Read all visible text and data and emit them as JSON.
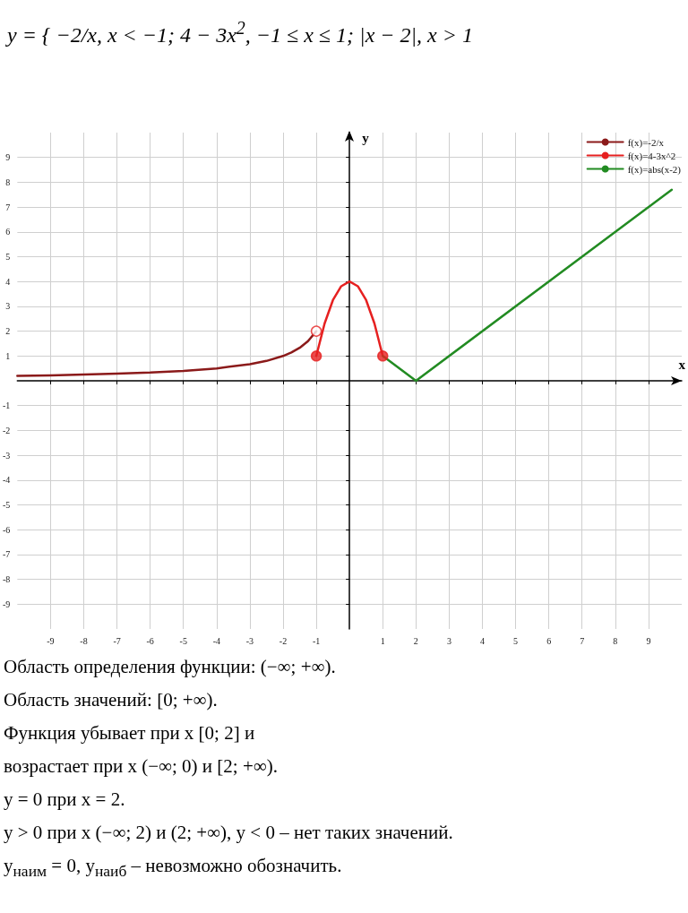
{
  "chart_data": {
    "type": "line",
    "title": "y = { −2/x,  x < −1;   4 − 3x$^{2}$,  −1 ≤ x ≤ 1;   |x − 2|,  x > 1",
    "xlabel": "x",
    "ylabel": "y",
    "xlim": [
      -10,
      10
    ],
    "ylim": [
      -10,
      10
    ],
    "xticks": [
      -9,
      -8,
      -7,
      -6,
      -5,
      -4,
      -3,
      -2,
      -1,
      1,
      2,
      3,
      4,
      5,
      6,
      7,
      8,
      9
    ],
    "yticks": [
      -9,
      -8,
      -7,
      -6,
      -5,
      -4,
      -3,
      -2,
      -1,
      1,
      2,
      3,
      4,
      5,
      6,
      7,
      8,
      9
    ],
    "grid": true,
    "legend": "top right",
    "marker": "none",
    "line_style": "solid",
    "series": [
      {
        "name": "f(x)=-2/x",
        "color": "#8b1a1a",
        "x": [
          -10,
          -9,
          -8,
          -7,
          -6,
          -5,
          -4,
          -3,
          -2.5,
          -2,
          -1.75,
          -1.5,
          -1.25,
          -1
        ],
        "values": [
          0.2,
          0.22,
          0.25,
          0.29,
          0.33,
          0.4,
          0.5,
          0.67,
          0.8,
          1,
          1.14,
          1.33,
          1.6,
          2
        ]
      },
      {
        "name": "f(x)=4-3x^2",
        "color": "#e62020",
        "x": [
          -1,
          -0.75,
          -0.5,
          -0.25,
          0,
          0.25,
          0.5,
          0.75,
          1
        ],
        "values": [
          1,
          2.31,
          3.25,
          3.81,
          4,
          3.81,
          3.25,
          2.31,
          1
        ]
      },
      {
        "name": "f(x)=abs(x-2)",
        "color": "#228b22",
        "x": [
          1,
          2,
          9.7
        ],
        "values": [
          1,
          0,
          7.7
        ]
      },
      {
        "type": "scatter",
        "marker": "circle",
        "color": "#e62020",
        "x": [
          -1,
          1
        ],
        "values": [
          1,
          1
        ]
      },
      {
        "type": "scatter",
        "marker": "circle",
        "color": "#ffffff",
        "x": [
          -1
        ],
        "values": [
          2
        ]
      }
    ],
    "annotations": [
      "Область определения функции: (−∞; +∞).",
      "Область значений: [0; +∞).",
      "Функция убывает при x [0; 2] и",
      "возрастает при x (−∞; 0) и [2; +∞).",
      "y = 0 при x = 2.",
      "y > 0 при x (−∞; 2) и (2; +∞),        y < 0 – нет таких значений.",
      "y$_{наим}$ = 0,        y$_{наиб}$ – невозможно обозначить."
    ]
  }
}
